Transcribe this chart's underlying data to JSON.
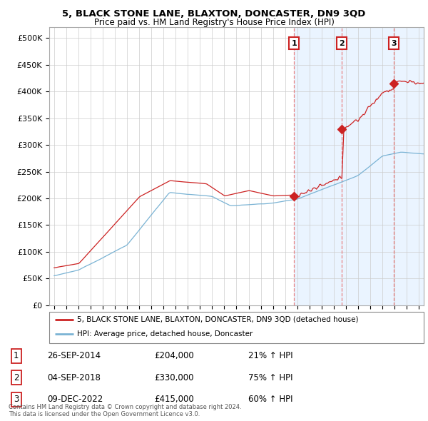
{
  "title": "5, BLACK STONE LANE, BLAXTON, DONCASTER, DN9 3QD",
  "subtitle": "Price paid vs. HM Land Registry's House Price Index (HPI)",
  "ylabel_ticks": [
    "£0",
    "£50K",
    "£100K",
    "£150K",
    "£200K",
    "£250K",
    "£300K",
    "£350K",
    "£400K",
    "£450K",
    "£500K"
  ],
  "ytick_values": [
    0,
    50000,
    100000,
    150000,
    200000,
    250000,
    300000,
    350000,
    400000,
    450000,
    500000
  ],
  "ylim": [
    0,
    520000
  ],
  "xlim_start": 1994.6,
  "xlim_end": 2025.4,
  "hpi_color": "#7ab3d4",
  "price_color": "#cc2222",
  "vline_color": "#e88080",
  "shade_color": "#ddeeff",
  "sales": [
    {
      "date_num": 2014.73,
      "price": 204000,
      "label": "1"
    },
    {
      "date_num": 2018.67,
      "price": 330000,
      "label": "2"
    },
    {
      "date_num": 2022.92,
      "price": 415000,
      "label": "3"
    }
  ],
  "sale_table": [
    {
      "num": "1",
      "date": "26-SEP-2014",
      "price": "£204,000",
      "hpi": "21% ↑ HPI"
    },
    {
      "num": "2",
      "date": "04-SEP-2018",
      "price": "£330,000",
      "hpi": "75% ↑ HPI"
    },
    {
      "num": "3",
      "date": "09-DEC-2022",
      "price": "£415,000",
      "hpi": "60% ↑ HPI"
    }
  ],
  "legend_price_label": "5, BLACK STONE LANE, BLAXTON, DONCASTER, DN9 3QD (detached house)",
  "legend_hpi_label": "HPI: Average price, detached house, Doncaster",
  "footnote": "Contains HM Land Registry data © Crown copyright and database right 2024.\nThis data is licensed under the Open Government Licence v3.0."
}
